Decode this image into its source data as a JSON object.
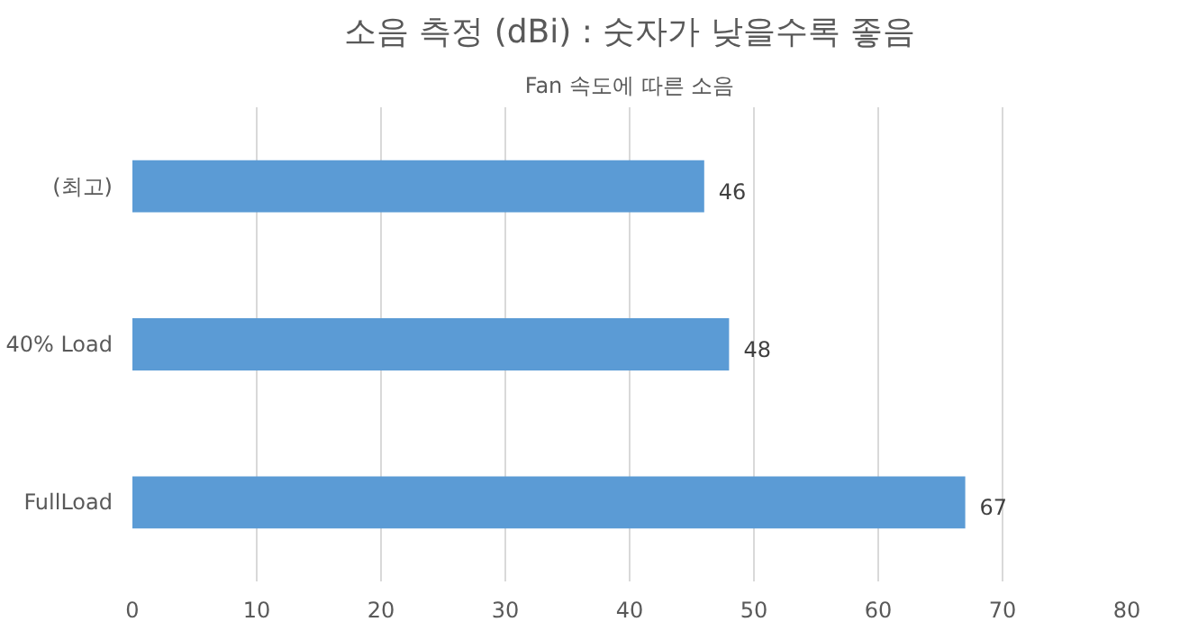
{
  "chart_data": {
    "type": "bar",
    "orientation": "horizontal",
    "title": "소음 측정 (dBi) : 숫자가 낮을수록 좋음",
    "subtitle": "Fan 속도에 따른 소음",
    "categories": [
      "(최고)",
      "40% Load",
      "FullLoad"
    ],
    "values": [
      46,
      48,
      67
    ],
    "color": "#5b9bd5",
    "xlim": [
      0,
      80
    ],
    "xticks": [
      0,
      10,
      20,
      30,
      40,
      50,
      60,
      70,
      80
    ],
    "grid": "x",
    "data_labels": true
  }
}
